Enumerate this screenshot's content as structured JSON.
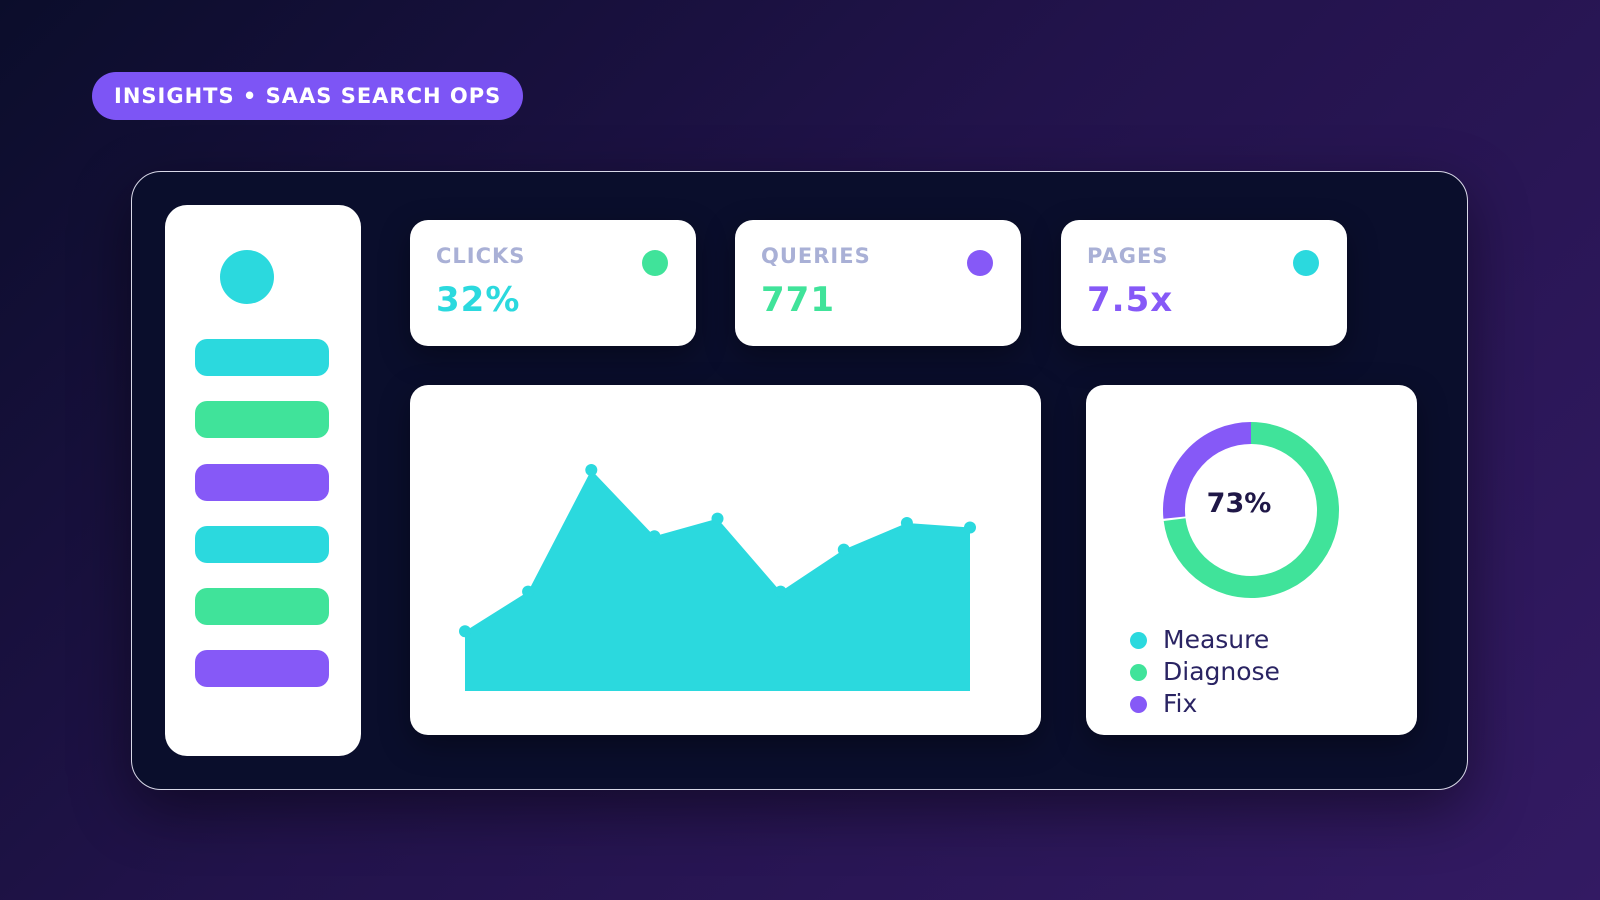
{
  "header": {
    "badge": "INSIGHTS • SAAS SEARCH OPS"
  },
  "colors": {
    "background_start": "#0b0d2b",
    "background_end": "#331a63",
    "panel": "#0a0e2c",
    "cyan": "#2bd9de",
    "green": "#40e39a",
    "purple": "#8659f7",
    "badge": "#7d55f5"
  },
  "sidebar": {
    "avatar_color": "#2bd9de",
    "items": [
      {
        "color": "#2bd9de"
      },
      {
        "color": "#40e39a"
      },
      {
        "color": "#8659f7"
      },
      {
        "color": "#2bd9de"
      },
      {
        "color": "#40e39a"
      },
      {
        "color": "#8659f7"
      }
    ]
  },
  "kpis": [
    {
      "label": "CLICKS",
      "value": "32%",
      "value_color": "#2bd9de",
      "dot_color": "#40e39a"
    },
    {
      "label": "QUERIES",
      "value": "771",
      "value_color": "#40e39a",
      "dot_color": "#8659f7"
    },
    {
      "label": "PAGES",
      "value": "7.5x",
      "value_color": "#8659f7",
      "dot_color": "#2bd9de"
    }
  ],
  "chart_data": [
    {
      "type": "area",
      "title": "",
      "xlabel": "",
      "ylabel": "",
      "x": [
        1,
        2,
        3,
        4,
        5,
        6,
        7,
        8,
        9
      ],
      "series": [
        {
          "values": [
            27,
            45,
            100,
            70,
            78,
            45,
            64,
            76,
            74
          ],
          "color": "#2bd9de"
        }
      ],
      "ylim": [
        0,
        115
      ],
      "grid": false
    },
    {
      "type": "pie",
      "title": "",
      "center_label": "73%",
      "segments": [
        {
          "value": 73,
          "color": "#40e39a"
        },
        {
          "value": 27,
          "color": "#8659f7"
        }
      ],
      "legend": [
        {
          "label": "Measure",
          "color": "#2bd9de"
        },
        {
          "label": "Diagnose",
          "color": "#40e39a"
        },
        {
          "label": "Fix",
          "color": "#8659f7"
        }
      ],
      "legend_position": "bottom-left"
    }
  ]
}
